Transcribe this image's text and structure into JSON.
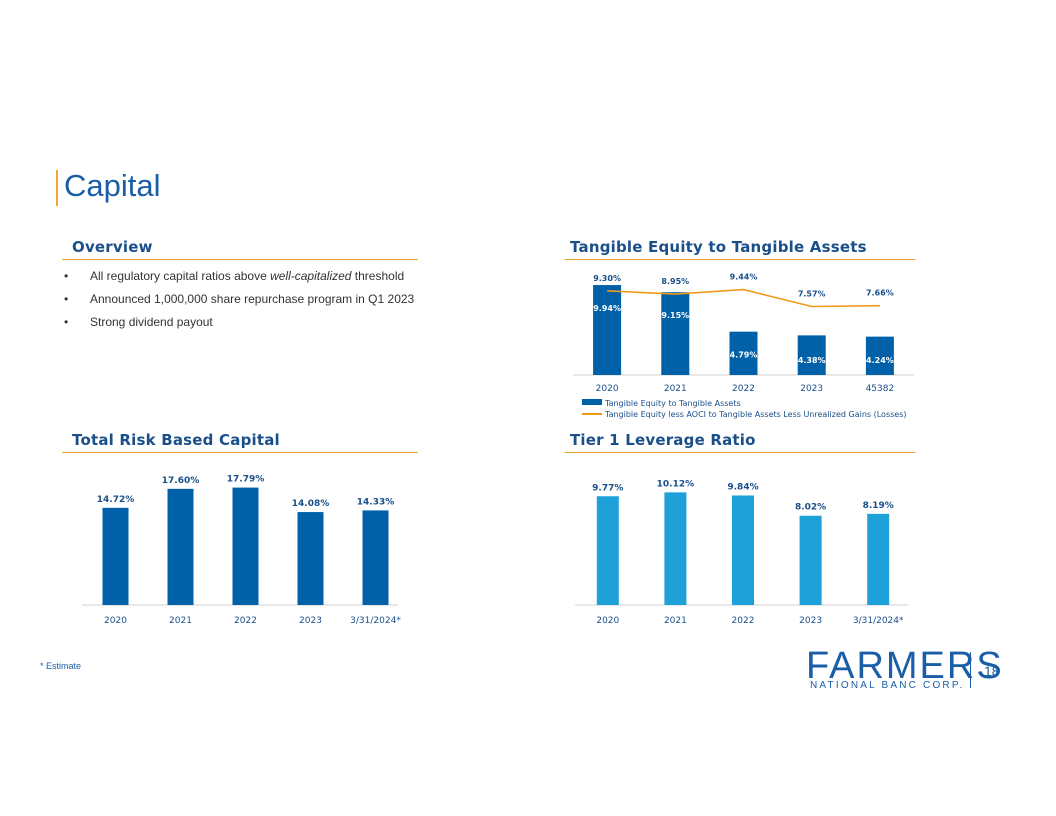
{
  "slide": {
    "title": "Capital",
    "page_number": "18",
    "footnote": "* Estimate"
  },
  "overview": {
    "heading": "Overview",
    "bullet_marker": "•",
    "bullets": [
      {
        "pre": "All regulatory capital ratios above ",
        "em": "well-capitalized",
        "post": " threshold"
      },
      {
        "pre": "Announced 1,000,000 share repurchase program in Q1 2023",
        "em": "",
        "post": ""
      },
      {
        "pre": "Strong dividend payout",
        "em": "",
        "post": ""
      }
    ]
  },
  "logo": {
    "name": "FARMERS",
    "subtitle": "NATIONAL BANC CORP."
  },
  "colors": {
    "accent": "#f0a830",
    "dark_blue": "#0060a8",
    "light_blue": "#1ea0d8",
    "title_blue": "#1a5ea8",
    "line_orange": "#f09a1a"
  },
  "chart_data": [
    {
      "id": "tangible",
      "heading": "Tangible Equity to Tangible Assets",
      "type": "bar+line",
      "categories": [
        "2020",
        "2021",
        "2022",
        "2023",
        "45382"
      ],
      "series": [
        {
          "name": "Tangible Equity to Tangible Assets",
          "type": "bar",
          "values": [
            9.94,
            9.15,
            4.79,
            4.38,
            4.24
          ],
          "labels": [
            "9.94%",
            "9.15%",
            "4.79%",
            "4.38%",
            "4.24%"
          ]
        },
        {
          "name": "Tangible Equity less AOCI to Tangible Assets Less Unrealized Gains (Losses)",
          "type": "line",
          "values": [
            9.3,
            8.95,
            9.44,
            7.57,
            7.66
          ],
          "labels": [
            "9.30%",
            "8.95%",
            "9.44%",
            "7.57%",
            "7.66%"
          ]
        }
      ],
      "ylim": [
        0,
        10.5
      ],
      "grid": false,
      "legend": "bottom"
    },
    {
      "id": "trbc",
      "heading": "Total Risk Based Capital",
      "type": "bar",
      "categories": [
        "2020",
        "2021",
        "2022",
        "2023",
        "3/31/2024*"
      ],
      "values": [
        14.72,
        17.6,
        17.79,
        14.08,
        14.33
      ],
      "labels": [
        "14.72%",
        "17.60%",
        "17.79%",
        "14.08%",
        "14.33%"
      ],
      "ylim": [
        0,
        20
      ],
      "grid": false
    },
    {
      "id": "tier1",
      "heading": "Tier 1 Leverage Ratio",
      "type": "bar",
      "categories": [
        "2020",
        "2021",
        "2022",
        "2023",
        "3/31/2024*"
      ],
      "values": [
        9.77,
        10.12,
        9.84,
        8.02,
        8.19
      ],
      "labels": [
        "9.77%",
        "10.12%",
        "9.84%",
        "8.02%",
        "8.19%"
      ],
      "ylim": [
        0,
        11.5
      ],
      "grid": false
    }
  ]
}
